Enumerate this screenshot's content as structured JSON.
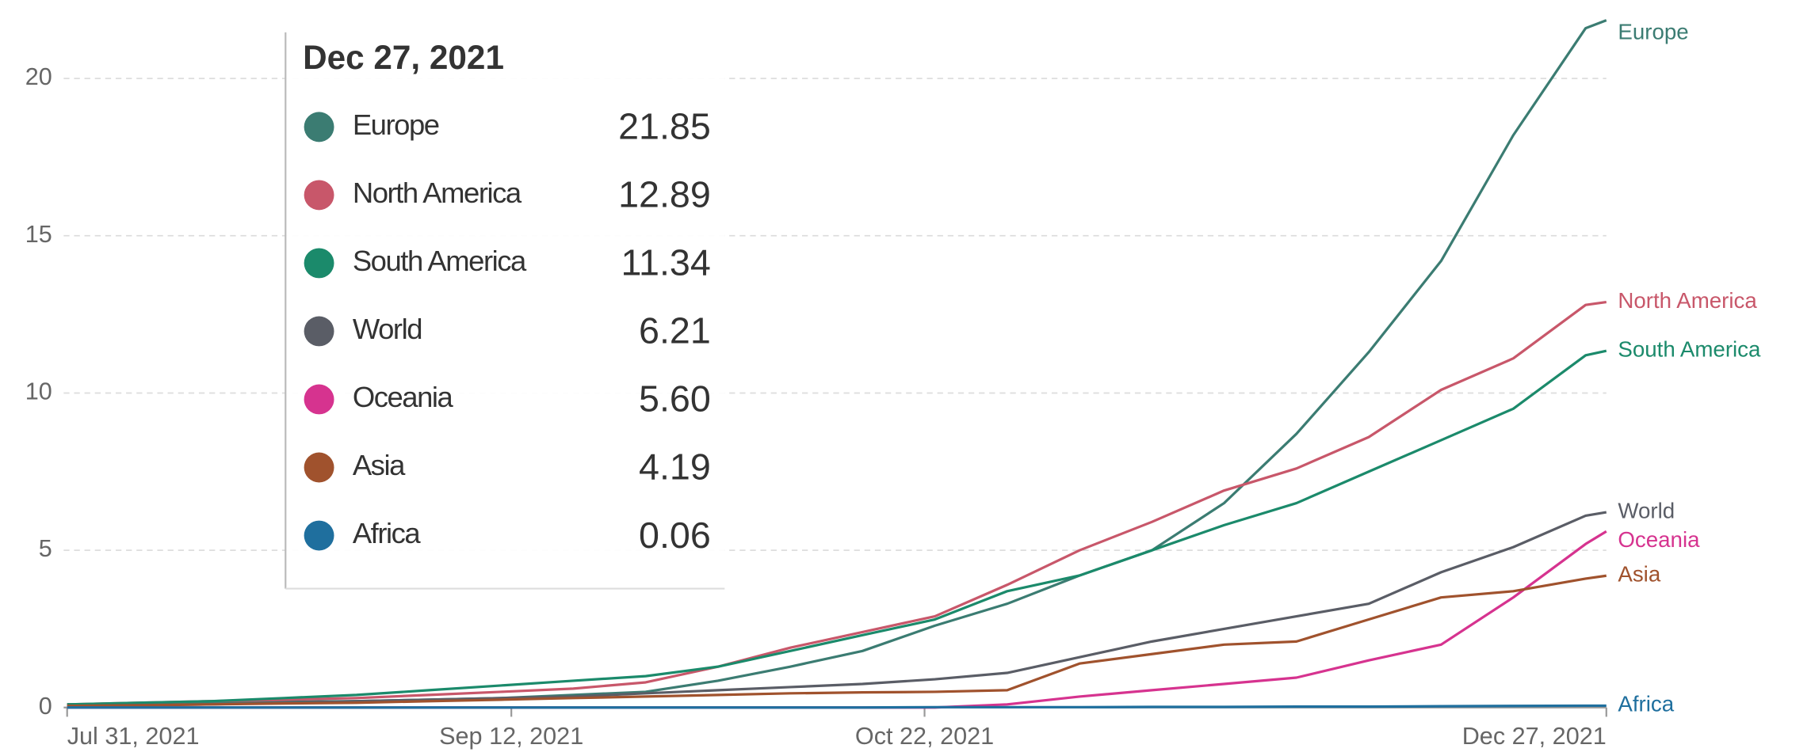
{
  "chart_data": {
    "type": "line",
    "x": [
      "2021-07-31",
      "2021-08-07",
      "2021-08-14",
      "2021-08-21",
      "2021-08-28",
      "2021-09-04",
      "2021-09-11",
      "2021-09-18",
      "2021-09-25",
      "2021-10-02",
      "2021-10-09",
      "2021-10-16",
      "2021-10-23",
      "2021-10-30",
      "2021-11-06",
      "2021-11-13",
      "2021-11-20",
      "2021-11-27",
      "2021-12-04",
      "2021-12-11",
      "2021-12-18",
      "2021-12-25",
      "2021-12-27"
    ],
    "xticks": [
      {
        "value": "2021-07-31",
        "label": "Jul 31, 2021"
      },
      {
        "value": "2021-09-12",
        "label": "Sep 12, 2021"
      },
      {
        "value": "2021-10-22",
        "label": "Oct 22, 2021"
      },
      {
        "value": "2021-12-27",
        "label": "Dec 27, 2021"
      }
    ],
    "ylim": [
      0,
      22
    ],
    "yticks": [
      0,
      5,
      10,
      15,
      20
    ],
    "grid": true,
    "series": [
      {
        "name": "Europe",
        "color": "#3b7c72",
        "values": [
          0.1,
          0.12,
          0.15,
          0.18,
          0.2,
          0.25,
          0.3,
          0.4,
          0.5,
          0.85,
          1.3,
          1.8,
          2.6,
          3.3,
          4.2,
          5.0,
          6.5,
          8.7,
          11.3,
          14.2,
          18.2,
          21.6,
          21.85
        ],
        "value_labels": [
          null,
          null,
          null,
          null,
          null,
          null,
          null,
          null,
          null,
          null,
          null,
          null,
          null,
          null,
          null,
          null,
          null,
          null,
          null,
          null,
          null,
          null,
          "21.85"
        ]
      },
      {
        "name": "North America",
        "color": "#c8576a",
        "values": [
          0.1,
          0.15,
          0.2,
          0.25,
          0.3,
          0.4,
          0.5,
          0.6,
          0.8,
          1.3,
          1.9,
          2.4,
          2.9,
          3.9,
          5.0,
          5.9,
          6.9,
          7.6,
          8.6,
          10.1,
          11.1,
          12.8,
          12.89
        ],
        "value_labels": [
          null,
          null,
          null,
          null,
          null,
          null,
          null,
          null,
          null,
          null,
          null,
          null,
          null,
          null,
          null,
          null,
          null,
          null,
          null,
          null,
          null,
          null,
          "12.89"
        ]
      },
      {
        "name": "South America",
        "color": "#1b8a6b",
        "values": [
          0.1,
          0.15,
          0.2,
          0.3,
          0.4,
          0.55,
          0.7,
          0.85,
          1.0,
          1.3,
          1.8,
          2.3,
          2.8,
          3.7,
          4.2,
          5.0,
          5.8,
          6.5,
          7.5,
          8.5,
          9.5,
          11.2,
          11.34
        ],
        "value_labels": [
          null,
          null,
          null,
          null,
          null,
          null,
          null,
          null,
          null,
          null,
          null,
          null,
          null,
          null,
          null,
          null,
          null,
          null,
          null,
          null,
          null,
          null,
          "11.34"
        ]
      },
      {
        "name": "World",
        "color": "#5a5d66",
        "values": [
          0.05,
          0.08,
          0.1,
          0.15,
          0.2,
          0.25,
          0.3,
          0.35,
          0.45,
          0.55,
          0.65,
          0.75,
          0.9,
          1.1,
          1.6,
          2.1,
          2.5,
          2.9,
          3.3,
          4.3,
          5.1,
          6.1,
          6.21
        ],
        "value_labels": [
          null,
          null,
          null,
          null,
          null,
          null,
          null,
          null,
          null,
          null,
          null,
          null,
          null,
          null,
          null,
          null,
          null,
          null,
          null,
          null,
          null,
          null,
          "6.21"
        ]
      },
      {
        "name": "Oceania",
        "color": "#d6338f",
        "values": [
          0,
          0,
          0,
          0,
          0,
          0,
          0,
          0,
          0,
          0,
          0,
          0,
          0,
          0.1,
          0.35,
          0.55,
          0.75,
          0.95,
          1.5,
          2.0,
          3.5,
          5.2,
          5.6
        ],
        "value_labels": [
          null,
          null,
          null,
          null,
          null,
          null,
          null,
          null,
          null,
          null,
          null,
          null,
          null,
          null,
          null,
          null,
          null,
          null,
          null,
          null,
          null,
          null,
          "5.60"
        ]
      },
      {
        "name": "Asia",
        "color": "#a0522d",
        "values": [
          0.05,
          0.07,
          0.1,
          0.13,
          0.15,
          0.2,
          0.25,
          0.3,
          0.35,
          0.4,
          0.45,
          0.48,
          0.5,
          0.55,
          1.4,
          1.7,
          2.0,
          2.1,
          2.8,
          3.5,
          3.7,
          4.1,
          4.19
        ],
        "value_labels": [
          null,
          null,
          null,
          null,
          null,
          null,
          null,
          null,
          null,
          null,
          null,
          null,
          null,
          null,
          null,
          null,
          null,
          null,
          null,
          null,
          null,
          null,
          "4.19"
        ]
      },
      {
        "name": "Africa",
        "color": "#1f6f9e",
        "values": [
          0,
          0,
          0,
          0,
          0,
          0,
          0,
          0,
          0,
          0,
          0,
          0,
          0.01,
          0.01,
          0.01,
          0.02,
          0.02,
          0.03,
          0.03,
          0.04,
          0.05,
          0.06,
          0.06
        ],
        "value_labels": [
          null,
          null,
          null,
          null,
          null,
          null,
          null,
          null,
          null,
          null,
          null,
          null,
          null,
          null,
          null,
          null,
          null,
          null,
          null,
          null,
          null,
          null,
          "0.06"
        ]
      }
    ]
  }
}
